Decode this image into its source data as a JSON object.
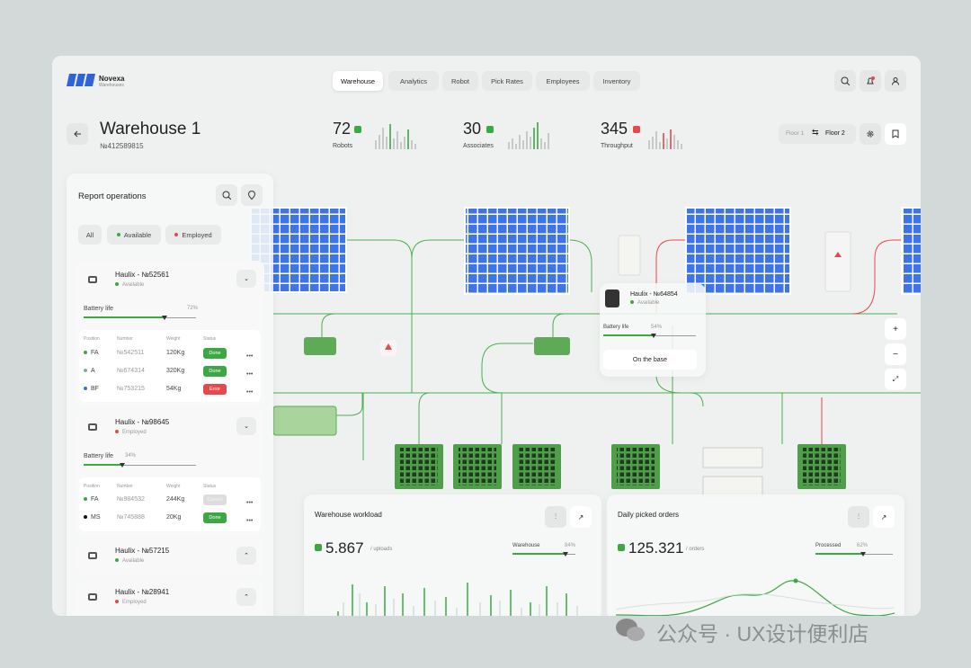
{
  "brand": {
    "name": "Novexa",
    "tagline": "Warehouses"
  },
  "nav": [
    "Warehouse",
    "Analytics",
    "Robot",
    "Pick Rates",
    "Employees",
    "Inventory"
  ],
  "header": {
    "title": "Warehouse 1",
    "id": "№412589815"
  },
  "stats": [
    {
      "value": 72,
      "label": "Robots"
    },
    {
      "value": 30,
      "label": "Associates"
    },
    {
      "value": 345,
      "label": "Throughput"
    }
  ],
  "floors": [
    "Floor 1",
    "Floor 2"
  ],
  "panel": {
    "title": "Report operations",
    "filters": [
      "All",
      "Available",
      "Employed"
    ],
    "robots": [
      {
        "name": "Haulix - №52561",
        "status": "Available",
        "battery_label": "Battery life",
        "battery": "72%",
        "columns": [
          "Position",
          "Number",
          "Weight",
          "Status"
        ],
        "rows": [
          [
            "FA",
            "№542511",
            "120Kg",
            "Done"
          ],
          [
            "A",
            "№674314",
            "320Kg",
            "Done"
          ],
          [
            "BF",
            "№753215",
            "54Kg",
            "Error"
          ]
        ]
      },
      {
        "name": "Haulix - №98645",
        "status": "Employed",
        "battery_label": "Battery life",
        "battery": "34%",
        "columns": [
          "Position",
          "Number",
          "Weight",
          "Status"
        ],
        "rows": [
          [
            "FA",
            "№984532",
            "244Kg",
            "Cancel"
          ],
          [
            "MS",
            "№745888",
            "20Kg",
            "Done"
          ]
        ]
      },
      {
        "name": "Haulix - №57215",
        "status": "Available"
      },
      {
        "name": "Haulix - №28941",
        "status": "Employed"
      }
    ]
  },
  "popup": {
    "name": "Haulix - №64854",
    "status": "Available",
    "battery_label": "Battery life",
    "battery": "54%",
    "action": "On the base"
  },
  "cards": [
    {
      "title": "Warehouse workload",
      "value": "5.867",
      "unit": "/ uploads",
      "meter_label": "Warehouse",
      "meter": "84%"
    },
    {
      "title": "Daily picked orders",
      "value": "125.321",
      "unit": "/ orders",
      "meter_label": "Processed",
      "meter": "62%"
    }
  ],
  "watermark": "公众号 · UX设计便利店"
}
